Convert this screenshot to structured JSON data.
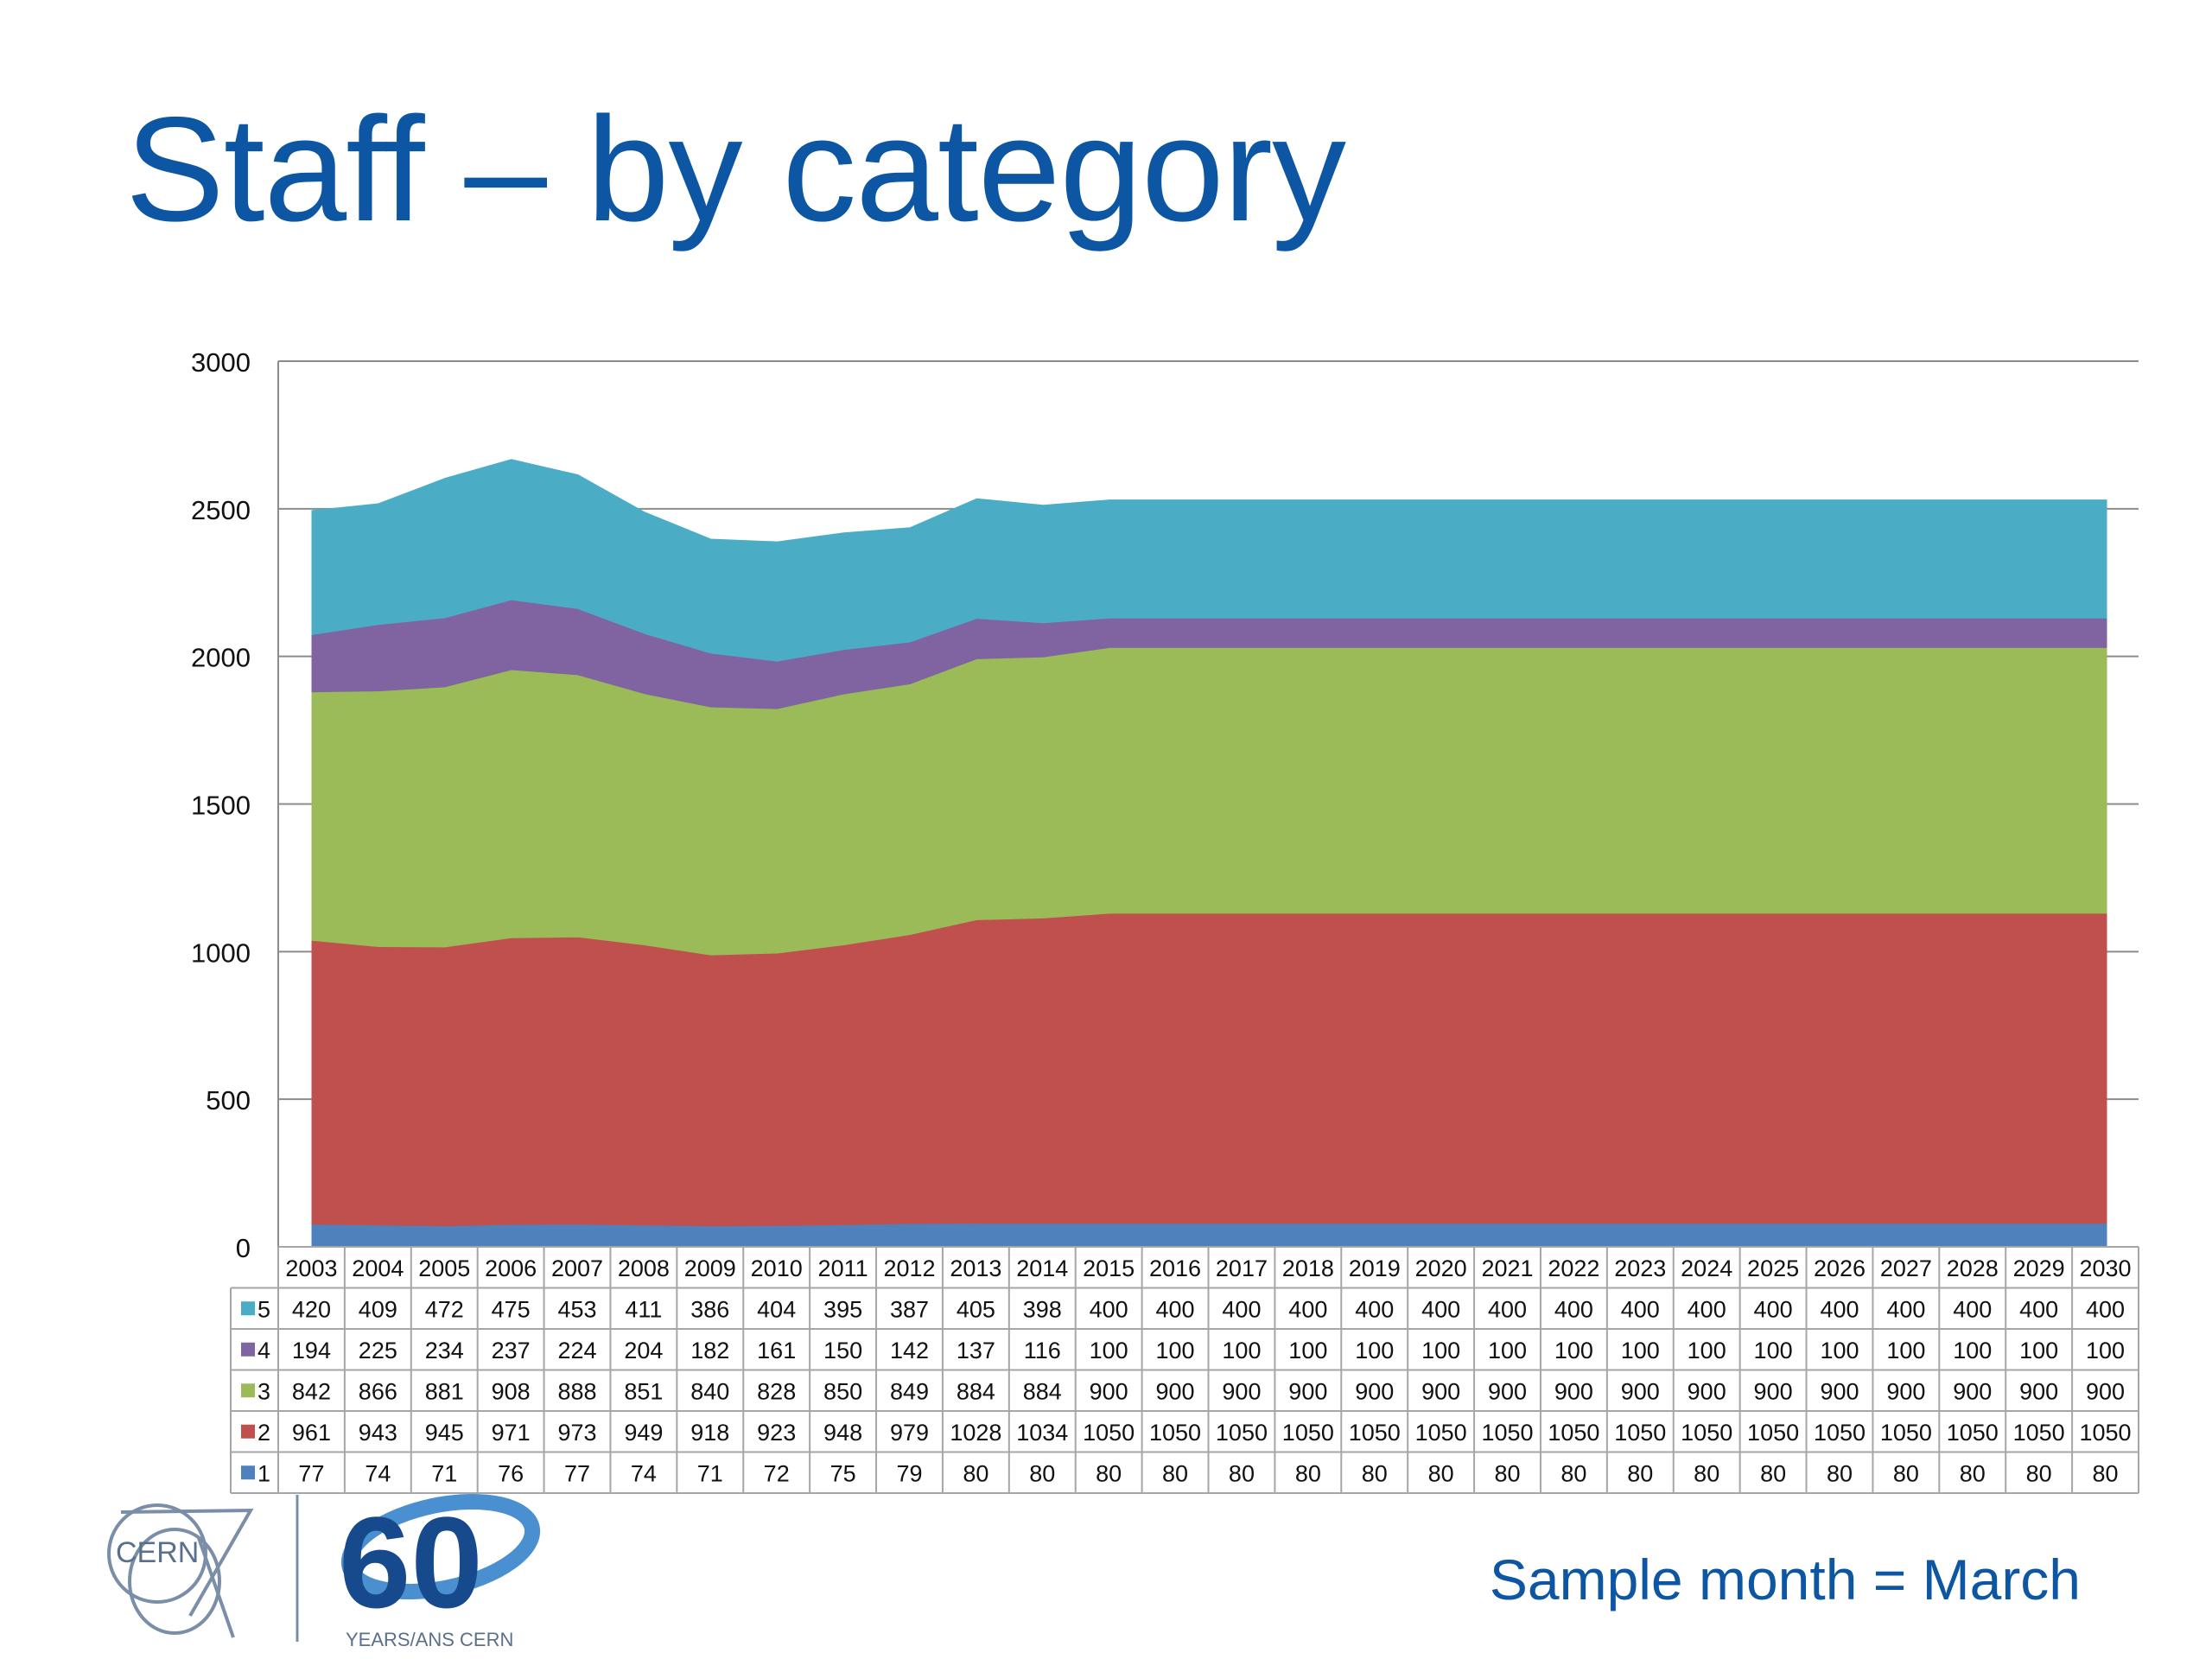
{
  "slide": {
    "title": "Staff – by category",
    "footer_note": "Sample month = March",
    "logos": {
      "cern_text": "CERN",
      "anniversary_text": "YEARS/ANS CERN",
      "anniversary_number": "60"
    }
  },
  "chart_data": {
    "type": "area",
    "stacked": true,
    "title": "",
    "xlabel": "",
    "ylabel": "",
    "ylim": [
      0,
      3000
    ],
    "yticks": [
      0,
      500,
      1000,
      1500,
      2000,
      2500,
      3000
    ],
    "grid": true,
    "legend": "data-table-rows",
    "categories": [
      "2003",
      "2004",
      "2005",
      "2006",
      "2007",
      "2008",
      "2009",
      "2010",
      "2011",
      "2012",
      "2013",
      "2014",
      "2015",
      "2016",
      "2017",
      "2018",
      "2019",
      "2020",
      "2021",
      "2022",
      "2023",
      "2024",
      "2025",
      "2026",
      "2027",
      "2028",
      "2029",
      "2030"
    ],
    "series": [
      {
        "name": "1",
        "color": "#4f81bd",
        "values": [
          77,
          74,
          71,
          76,
          77,
          74,
          71,
          72,
          75,
          79,
          80,
          80,
          80,
          80,
          80,
          80,
          80,
          80,
          80,
          80,
          80,
          80,
          80,
          80,
          80,
          80,
          80,
          80
        ]
      },
      {
        "name": "2",
        "color": "#c0504d",
        "values": [
          961,
          943,
          945,
          971,
          973,
          949,
          918,
          923,
          948,
          979,
          1028,
          1034,
          1050,
          1050,
          1050,
          1050,
          1050,
          1050,
          1050,
          1050,
          1050,
          1050,
          1050,
          1050,
          1050,
          1050,
          1050,
          1050
        ]
      },
      {
        "name": "3",
        "color": "#9bbb59",
        "values": [
          842,
          866,
          881,
          908,
          888,
          851,
          840,
          828,
          850,
          849,
          884,
          884,
          900,
          900,
          900,
          900,
          900,
          900,
          900,
          900,
          900,
          900,
          900,
          900,
          900,
          900,
          900,
          900
        ]
      },
      {
        "name": "4",
        "color": "#8064a2",
        "values": [
          194,
          225,
          234,
          237,
          224,
          204,
          182,
          161,
          150,
          142,
          137,
          116,
          100,
          100,
          100,
          100,
          100,
          100,
          100,
          100,
          100,
          100,
          100,
          100,
          100,
          100,
          100,
          100
        ]
      },
      {
        "name": "5",
        "color": "#4bacc6",
        "values": [
          420,
          409,
          472,
          475,
          453,
          411,
          386,
          404,
          395,
          387,
          405,
          398,
          400,
          400,
          400,
          400,
          400,
          400,
          400,
          400,
          400,
          400,
          400,
          400,
          400,
          400,
          400,
          400
        ]
      }
    ]
  }
}
